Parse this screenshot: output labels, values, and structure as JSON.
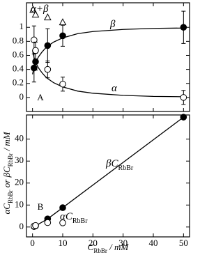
{
  "chart_data": [
    {
      "type": "scatter",
      "panel_label": "A",
      "show_xtick_labels": false,
      "xlim": [
        -2,
        52
      ],
      "xticks": [
        0,
        10,
        20,
        30,
        40,
        50
      ],
      "ylim": [
        -0.2,
        1.35
      ],
      "yticks": [
        0,
        {
          "value": 0.2,
          "label": "0.2"
        },
        {
          "value": 0.4,
          "label": "0.4"
        },
        {
          "value": 0.6,
          "label": "0.6"
        },
        {
          "value": 0.8,
          "label": "0.8"
        },
        1
      ],
      "series": [
        {
          "name": "α+β",
          "marker": "triangle",
          "color": "#000000",
          "x": [
            0.2,
            1,
            5,
            10
          ],
          "values": [
            1.25,
            1.18,
            1.14,
            1.07
          ]
        },
        {
          "name": "β",
          "marker": "filled",
          "color": "#000000",
          "x": [
            0.5,
            1,
            5,
            10,
            50
          ],
          "values": [
            0.42,
            0.51,
            0.74,
            0.88,
            1.0
          ],
          "errors": [
            0.2,
            0.12,
            0.24,
            0.15,
            0.23
          ]
        },
        {
          "name": "α",
          "marker": "open",
          "color": "#000000",
          "x": [
            0.5,
            1,
            5,
            10,
            50
          ],
          "values": [
            0.82,
            0.67,
            0.4,
            0.19,
            0.0
          ],
          "errors": [
            0.2,
            0.12,
            0.12,
            0.1,
            0.1
          ]
        }
      ],
      "fits": [
        {
          "x": [
            0,
            0.5,
            1,
            2,
            3,
            4,
            5,
            7,
            10,
            15,
            20,
            30,
            40,
            50
          ],
          "values": [
            0.33,
            0.43,
            0.5,
            0.58,
            0.64,
            0.69,
            0.73,
            0.79,
            0.85,
            0.91,
            0.94,
            0.97,
            0.985,
            0.99
          ]
        },
        {
          "x": [
            0,
            0.5,
            1,
            2,
            3,
            4,
            5,
            7,
            10,
            15,
            20,
            30,
            40,
            50
          ],
          "values": [
            0.67,
            0.57,
            0.5,
            0.42,
            0.36,
            0.31,
            0.27,
            0.21,
            0.15,
            0.09,
            0.06,
            0.03,
            0.015,
            0.01
          ]
        }
      ]
    },
    {
      "type": "scatter",
      "panel_label": "B",
      "show_xtick_labels": true,
      "xlim": [
        -2,
        52
      ],
      "xticks": [
        0,
        10,
        20,
        30,
        40,
        50
      ],
      "ylim": [
        -4.5,
        51
      ],
      "yticks": [
        0,
        10,
        20,
        30,
        40
      ],
      "xlabel": [
        {
          "text": "C"
        },
        {
          "text": "RbBr",
          "sub": true
        },
        {
          "text": " / mM"
        }
      ],
      "ylabel": [
        {
          "text": "αC"
        },
        {
          "text": "RbBr",
          "sub": true
        },
        {
          "text": " or βC"
        },
        {
          "text": "RbBr",
          "sub": true
        },
        {
          "text": " / mM"
        }
      ],
      "series": [
        {
          "name": "βC",
          "name_sub": "RbBr",
          "marker": "filled",
          "line": true,
          "color": "#000000",
          "x": [
            0.5,
            1,
            5,
            10,
            50
          ],
          "values": [
            0.21,
            0.51,
            3.7,
            8.8,
            50
          ]
        },
        {
          "name": "αC",
          "name_sub": "RbBr",
          "marker": "open",
          "color": "#000000",
          "x": [
            0.5,
            1,
            5,
            10
          ],
          "values": [
            0.41,
            0.67,
            2.0,
            1.9
          ]
        }
      ]
    }
  ]
}
